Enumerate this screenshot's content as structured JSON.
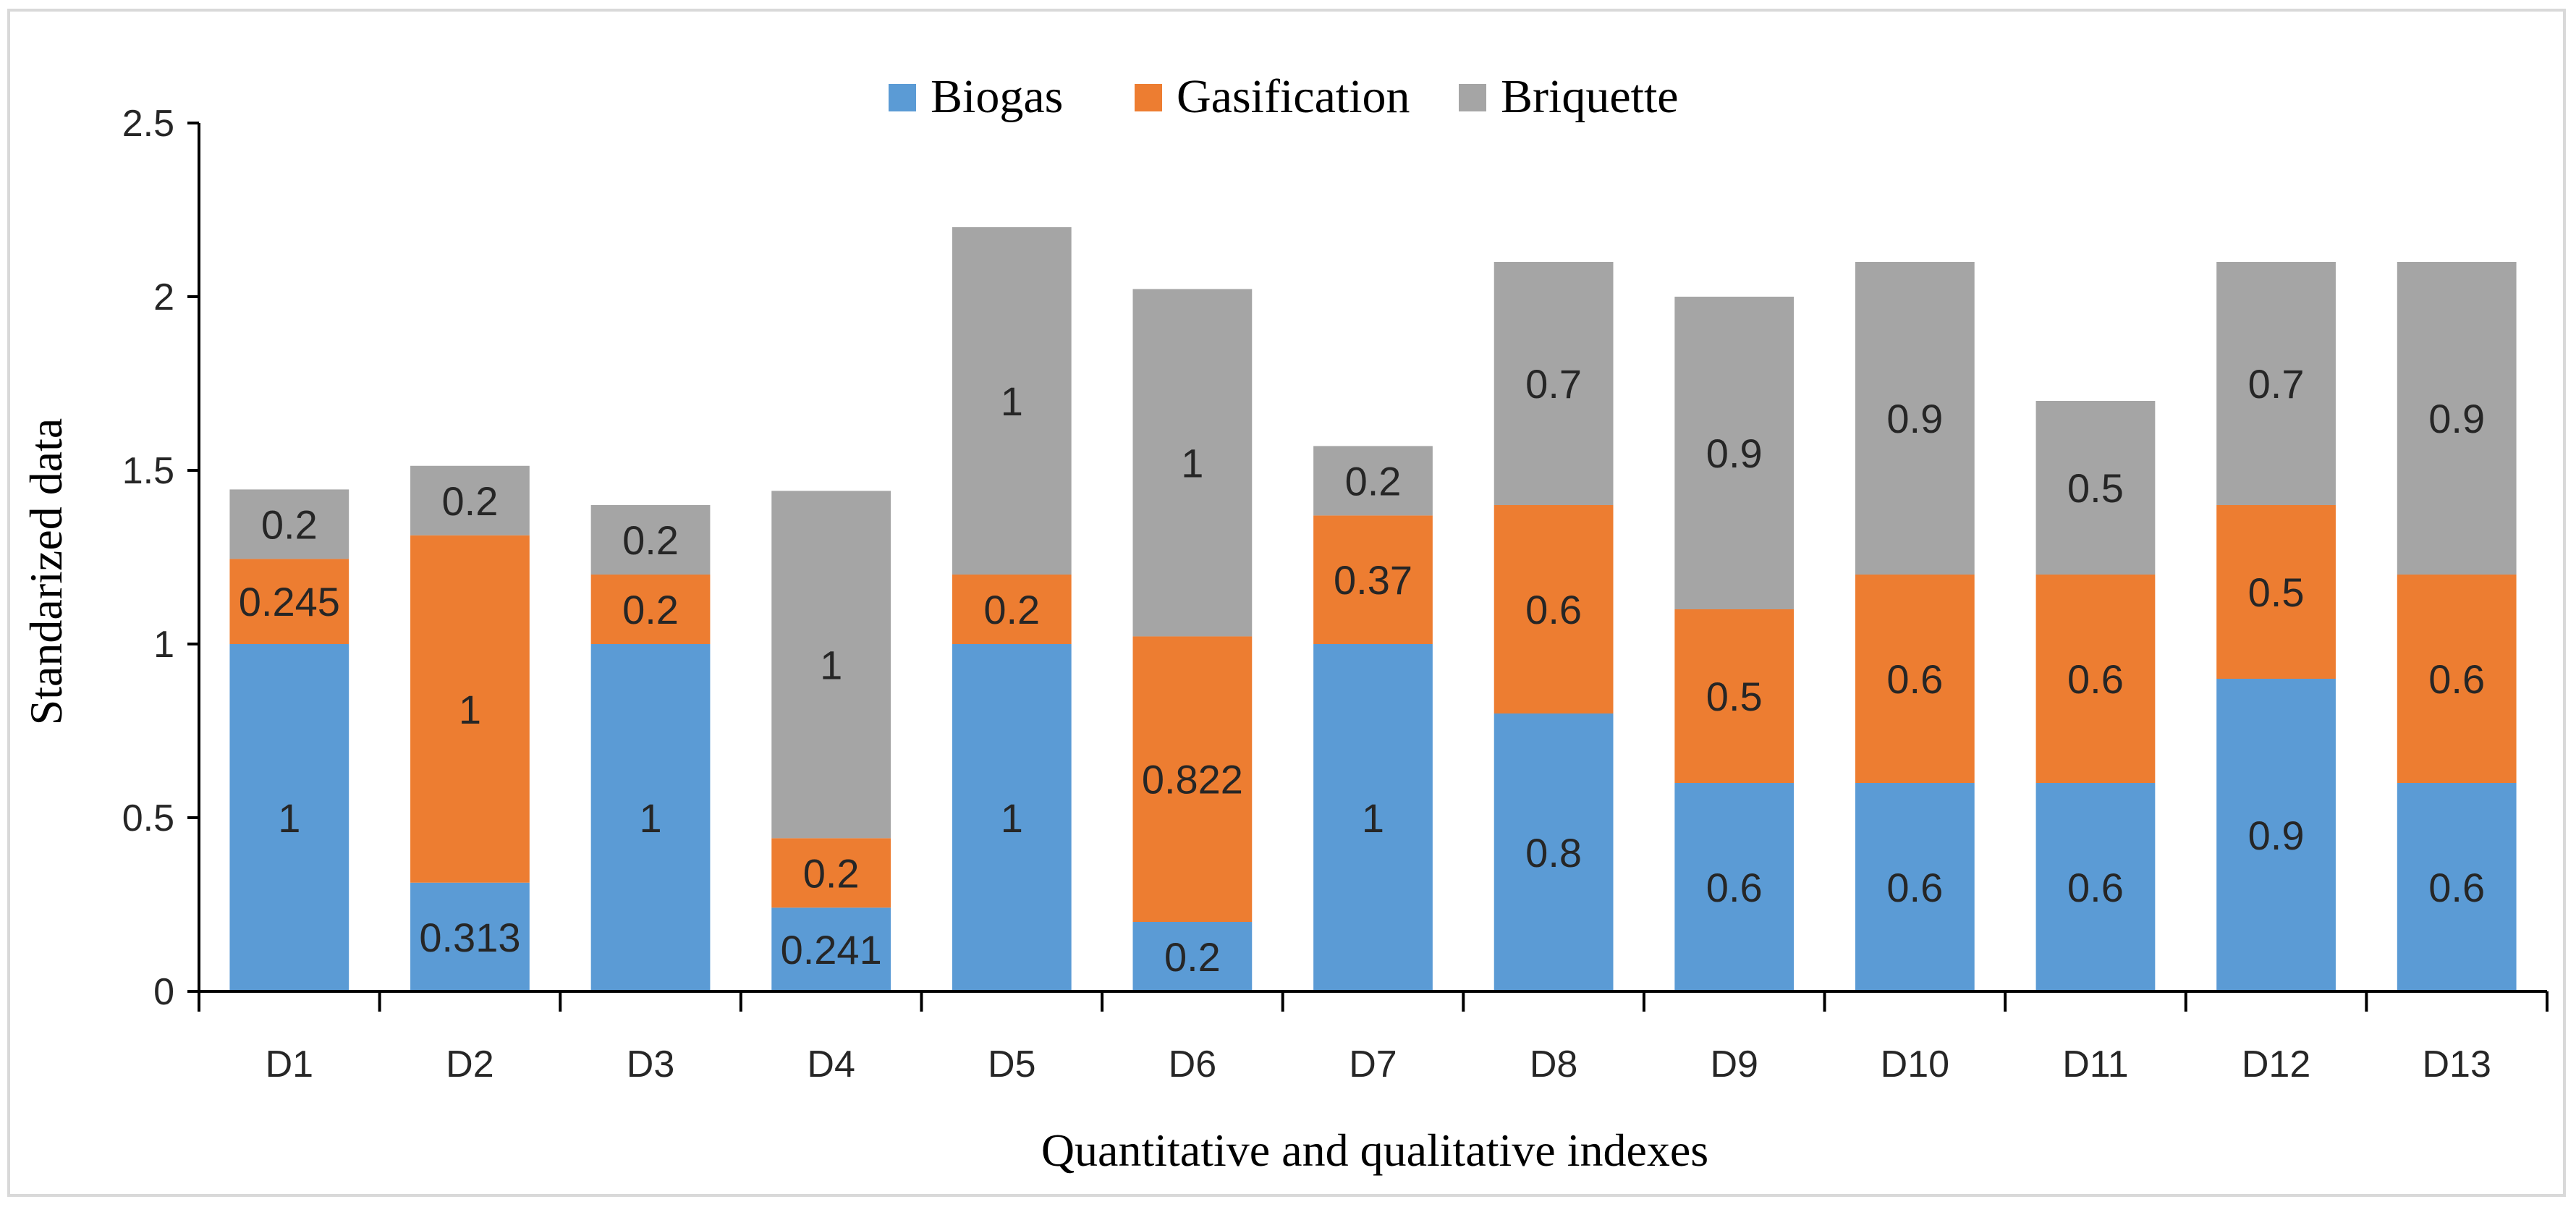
{
  "chart_data": {
    "type": "bar",
    "stacked": true,
    "categories": [
      "D1",
      "D2",
      "D3",
      "D4",
      "D5",
      "D6",
      "D7",
      "D8",
      "D9",
      "D10",
      "D11",
      "D12",
      "D13"
    ],
    "series": [
      {
        "name": "Biogas",
        "color": "#5b9bd5",
        "values": [
          1,
          0.313,
          1,
          0.241,
          1,
          0.2,
          1,
          0.8,
          0.6,
          0.6,
          0.6,
          0.9,
          0.6
        ]
      },
      {
        "name": "Gasification",
        "color": "#ed7d31",
        "values": [
          0.245,
          1,
          0.2,
          0.2,
          0.2,
          0.822,
          0.37,
          0.6,
          0.5,
          0.6,
          0.6,
          0.5,
          0.6
        ]
      },
      {
        "name": "Briquette",
        "color": "#a5a5a5",
        "values": [
          0.2,
          0.2,
          0.2,
          1,
          1,
          1,
          0.2,
          0.7,
          0.9,
          0.9,
          0.5,
          0.7,
          0.9
        ]
      }
    ],
    "title": "",
    "xlabel": "Quantitative and qualitative indexes",
    "ylabel": "Standarized data",
    "ylim": [
      0,
      2.5
    ],
    "yticks": [
      "0",
      "0.5",
      "1",
      "1.5",
      "2",
      "2.5"
    ],
    "legend_position": "top-center",
    "grid": false
  }
}
